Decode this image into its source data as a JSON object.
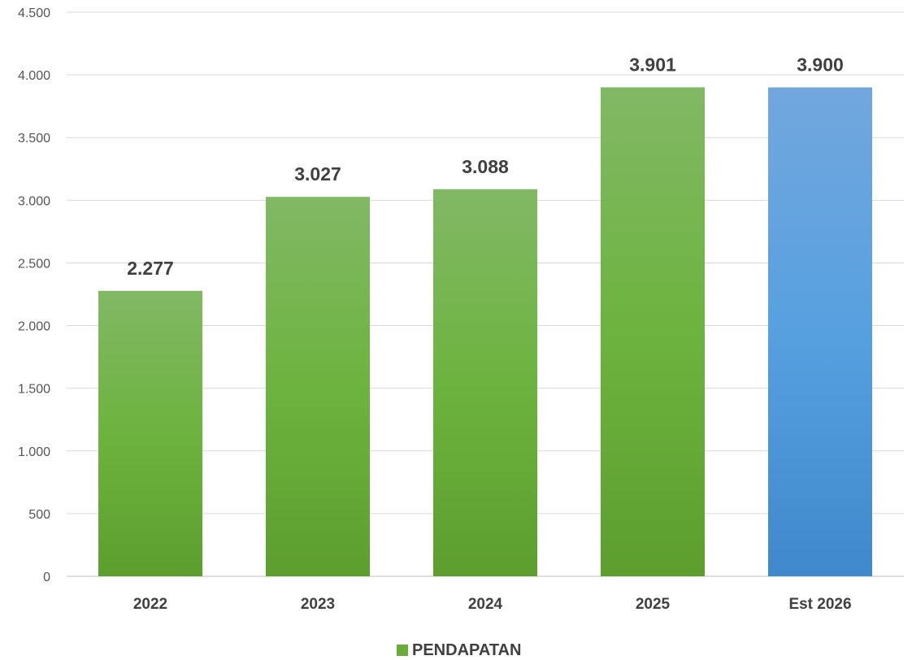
{
  "chart_data": {
    "type": "bar",
    "title": "",
    "xlabel": "",
    "ylabel": "",
    "categories": [
      "2022",
      "2023",
      "2024",
      "2025",
      "Est 2026"
    ],
    "series": [
      {
        "name": "PENDAPATAN",
        "values": [
          2277,
          3027,
          3088,
          3901,
          3900
        ],
        "data_labels": [
          "2.277",
          "3.027",
          "3.088",
          "3.901",
          "3.900"
        ],
        "color": "#6aab3c",
        "highlight_index": 4,
        "highlight_color": "#4a90d9"
      }
    ],
    "ylim": [
      0,
      4500
    ],
    "yticks": [
      0,
      500,
      1000,
      1500,
      2000,
      2500,
      3000,
      3500,
      4000,
      4500
    ],
    "ytick_labels": [
      "0",
      "500",
      "1.000",
      "1.500",
      "2.000",
      "2.500",
      "3.000",
      "3.500",
      "4.000",
      "4.500"
    ],
    "grid": true,
    "legend": {
      "placement": "bottom-center",
      "entries": [
        "PENDAPATAN"
      ]
    }
  }
}
